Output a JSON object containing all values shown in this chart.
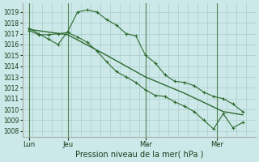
{
  "xlabel": "Pression niveau de la mer( hPa )",
  "bg_color": "#cce8e8",
  "grid_color": "#aacccc",
  "line_color": "#2d6a2d",
  "ylim": [
    1007.5,
    1019.8
  ],
  "yticks": [
    1008,
    1009,
    1010,
    1011,
    1012,
    1013,
    1014,
    1015,
    1016,
    1017,
    1018,
    1019
  ],
  "xlim": [
    0,
    72
  ],
  "xtick_labels": [
    "Lun",
    "Jeu",
    "Mar",
    "Mer"
  ],
  "xtick_positions": [
    2,
    14,
    38,
    60
  ],
  "vline_positions": [
    2,
    14,
    38,
    60
  ],
  "line1_x": [
    2,
    5,
    8,
    11,
    14,
    17,
    20,
    23,
    26,
    29,
    32,
    35,
    38,
    41,
    44,
    47,
    50,
    53,
    56,
    59,
    62,
    65,
    68
  ],
  "line1_y": [
    1017.3,
    1016.9,
    1016.9,
    1017.0,
    1017.1,
    1016.7,
    1016.2,
    1015.4,
    1014.4,
    1013.5,
    1013.0,
    1012.5,
    1011.8,
    1011.3,
    1011.2,
    1010.7,
    1010.3,
    1009.8,
    1009.0,
    1008.2,
    1009.6,
    1008.3,
    1008.8
  ],
  "line2_x": [
    2,
    5,
    8,
    11,
    14,
    17,
    20,
    23,
    26,
    29,
    32,
    35,
    38,
    41,
    44,
    47,
    50,
    53,
    56,
    59,
    62,
    65,
    68
  ],
  "line2_y": [
    1017.5,
    1017.0,
    1016.5,
    1016.0,
    1017.2,
    1019.0,
    1019.2,
    1019.0,
    1018.3,
    1017.8,
    1017.0,
    1016.8,
    1015.0,
    1014.3,
    1013.2,
    1012.6,
    1012.5,
    1012.2,
    1011.6,
    1011.2,
    1011.0,
    1010.5,
    1009.8
  ],
  "line3_x": [
    2,
    14,
    26,
    38,
    50,
    62,
    68
  ],
  "line3_y": [
    1017.4,
    1016.9,
    1015.0,
    1013.0,
    1011.5,
    1009.8,
    1009.5
  ],
  "xlabel_fontsize": 7,
  "tick_fontsize": 5.5
}
